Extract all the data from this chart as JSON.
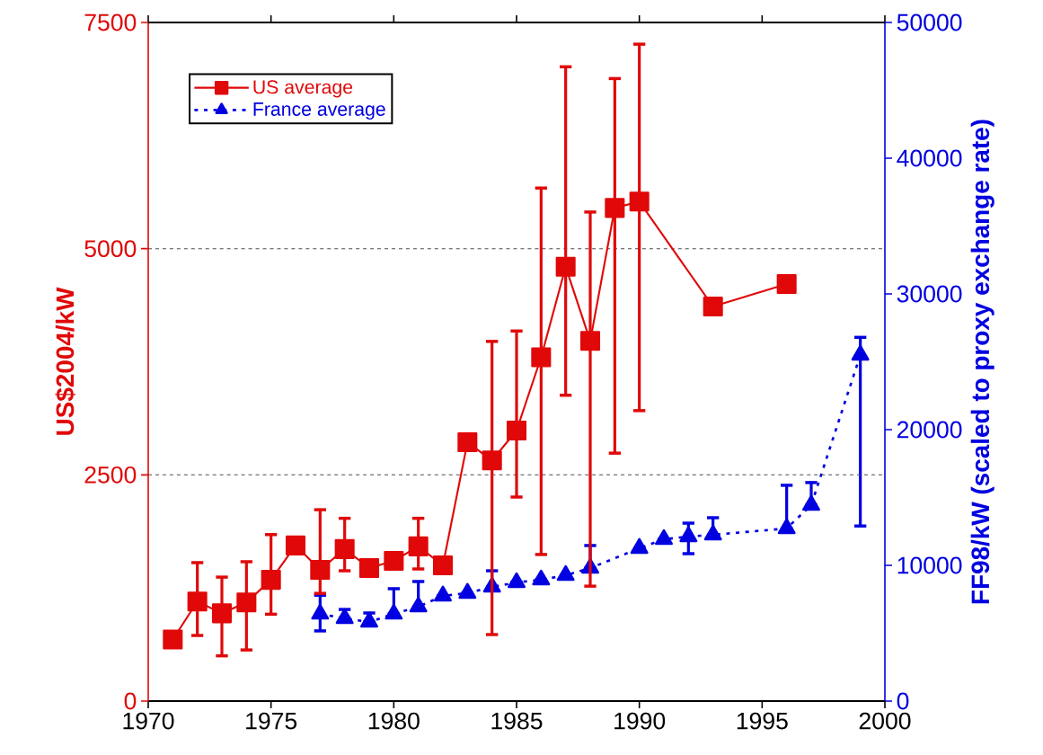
{
  "chart_data": {
    "type": "line",
    "ylabel": "US$2004/kW",
    "y2label": "FF98/kW (scaled to proxy exchange rate)",
    "xlim": [
      1970,
      2000
    ],
    "xticks": [
      1970,
      1975,
      1980,
      1985,
      1990,
      1995,
      2000
    ],
    "ylim": [
      0,
      7500
    ],
    "yticks": [
      0,
      2500,
      5000,
      7500
    ],
    "y2lim": [
      0,
      50000
    ],
    "y2ticks": [
      0,
      10000,
      20000,
      30000,
      40000,
      50000
    ],
    "grid": "y",
    "legend": "top left",
    "series": [
      {
        "name": "US average",
        "color": "#e00808",
        "marker": "square",
        "line_style": "solid",
        "x": [
          1971,
          1972,
          1973,
          1974,
          1975,
          1976,
          1977,
          1978,
          1979,
          1980,
          1981,
          1982,
          1983,
          1984,
          1985,
          1986,
          1987,
          1988,
          1989,
          1990,
          1993,
          1996
        ],
        "values": [
          680,
          1100,
          970,
          1090,
          1340,
          1720,
          1450,
          1680,
          1470,
          1550,
          1710,
          1500,
          2860,
          2660,
          2990,
          3800,
          4800,
          3980,
          5450,
          5520,
          4360,
          4610
        ],
        "errors": [
          null,
          [
            725,
            1530
          ],
          [
            500,
            1370
          ],
          [
            565,
            1540
          ],
          [
            960,
            1840
          ],
          null,
          [
            1190,
            2115
          ],
          [
            1440,
            2020
          ],
          null,
          null,
          [
            1460,
            2020
          ],
          null,
          null,
          [
            735,
            3975
          ],
          [
            2255,
            4090
          ],
          [
            1620,
            5670
          ],
          [
            3380,
            7010
          ],
          [
            1270,
            5405
          ],
          [
            2740,
            6880
          ],
          [
            3210,
            7260
          ],
          null,
          null
        ]
      },
      {
        "name": "France average",
        "color": "#0000e0",
        "marker": "triangle",
        "line_style": "dotted",
        "axis": "y2",
        "x": [
          1977,
          1978,
          1979,
          1980,
          1981,
          1982,
          1983,
          1984,
          1985,
          1986,
          1987,
          1988,
          1990,
          1991,
          1992,
          1993,
          1996,
          1997,
          1999
        ],
        "values": [
          6420,
          6090,
          5830,
          6420,
          6950,
          7750,
          7950,
          8410,
          8740,
          8940,
          9270,
          9800,
          11260,
          11920,
          12120,
          12250,
          12720,
          14440,
          25500
        ],
        "errors": [
          [
            5170,
            7800
          ],
          [
            6090,
            6750
          ],
          [
            5830,
            6490
          ],
          [
            6420,
            8280
          ],
          [
            6950,
            8810
          ],
          null,
          null,
          [
            8410,
            9600
          ],
          null,
          null,
          null,
          [
            9800,
            11460
          ],
          null,
          null,
          [
            10860,
            13110
          ],
          [
            12250,
            13510
          ],
          [
            12720,
            15900
          ],
          [
            14440,
            16100
          ],
          [
            12900,
            26800
          ]
        ]
      }
    ]
  }
}
